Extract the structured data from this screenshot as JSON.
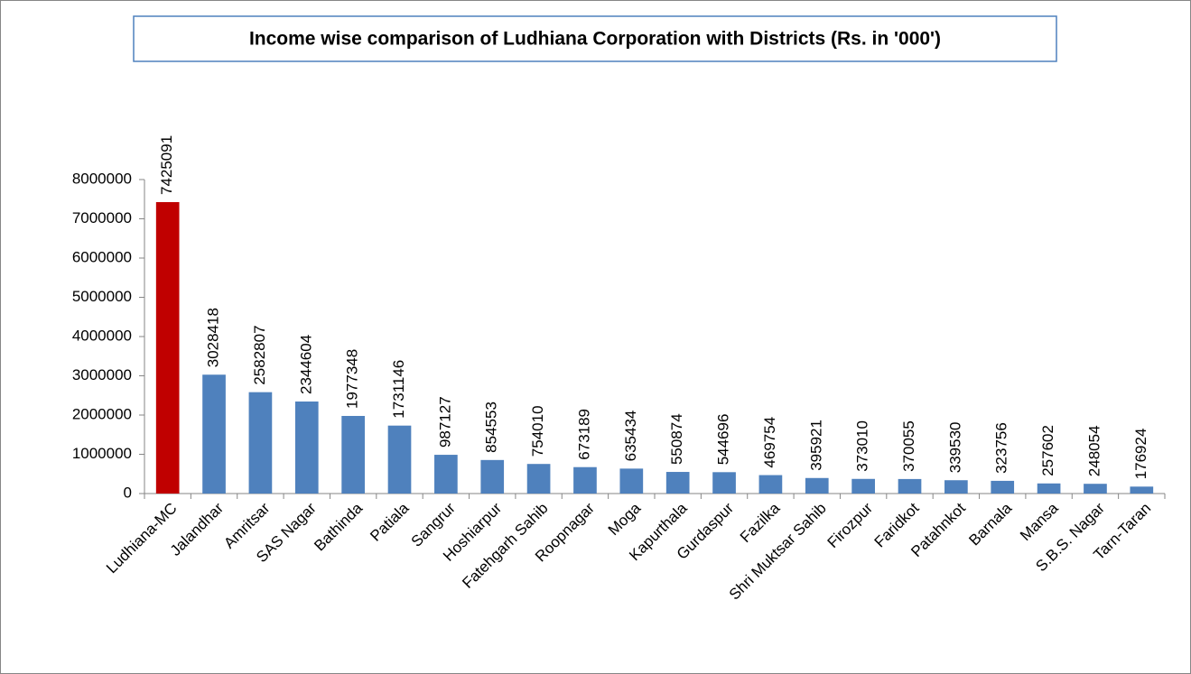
{
  "chart_data": {
    "type": "bar",
    "title": "Income wise comparison of Ludhiana Corporation with Districts (Rs. in '000')",
    "categories": [
      "Ludhiana-MC",
      "Jalandhar",
      "Amritsar",
      "SAS Nagar",
      "Bathinda",
      "Patiala",
      "Sangrur",
      "Hoshiarpur",
      "Fatehgarh Sahib",
      "Roopnagar",
      "Moga",
      "Kapurthala",
      "Gurdaspur",
      "Fazilka",
      "Shri Muktsar Sahib",
      "Firozpur",
      "Faridkot",
      "Patahnkot",
      "Barnala",
      "Mansa",
      "S.B.S. Nagar",
      "Tarn-Taran"
    ],
    "values": [
      7425091,
      3028418,
      2582807,
      2344604,
      1977348,
      1731146,
      987127,
      854553,
      754010,
      673189,
      635434,
      550874,
      544696,
      469754,
      395921,
      373010,
      370055,
      339530,
      323756,
      257602,
      248054,
      176924
    ],
    "colors": [
      "#c00000",
      "#4f81bd",
      "#4f81bd",
      "#4f81bd",
      "#4f81bd",
      "#4f81bd",
      "#4f81bd",
      "#4f81bd",
      "#4f81bd",
      "#4f81bd",
      "#4f81bd",
      "#4f81bd",
      "#4f81bd",
      "#4f81bd",
      "#4f81bd",
      "#4f81bd",
      "#4f81bd",
      "#4f81bd",
      "#4f81bd",
      "#4f81bd",
      "#4f81bd",
      "#4f81bd"
    ],
    "ylim": [
      0,
      8000000
    ],
    "yticks": [
      0,
      1000000,
      2000000,
      3000000,
      4000000,
      5000000,
      6000000,
      7000000,
      8000000
    ],
    "grid": false
  }
}
